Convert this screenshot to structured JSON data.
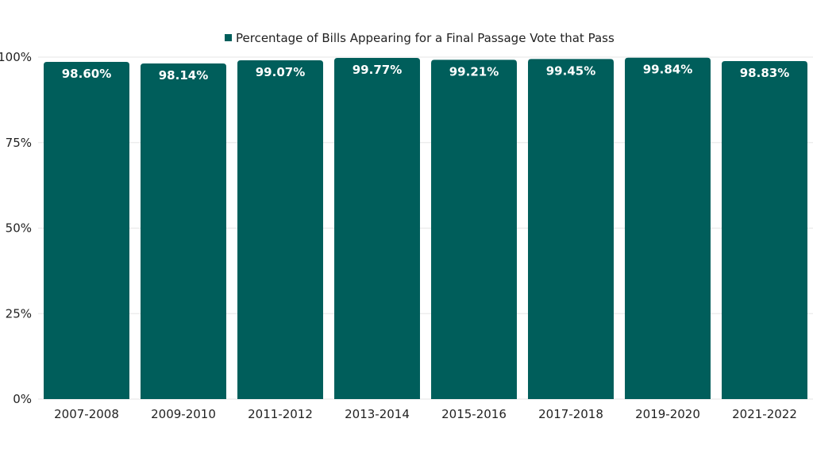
{
  "chart_data": {
    "type": "bar",
    "categories": [
      "2007-2008",
      "2009-2010",
      "2011-2012",
      "2013-2014",
      "2015-2016",
      "2017-2018",
      "2019-2020",
      "2021-2022"
    ],
    "series": [
      {
        "name": "Percentage of Bills Appearing for a Final Passage Vote that Pass",
        "values": [
          98.6,
          98.14,
          99.07,
          99.77,
          99.21,
          99.45,
          99.84,
          98.83
        ],
        "data_labels": [
          "98.60%",
          "98.14%",
          "99.07%",
          "99.77%",
          "99.21%",
          "99.45%",
          "99.84%",
          "98.83%"
        ]
      }
    ],
    "yticks": [
      0,
      25,
      50,
      75,
      100
    ],
    "ytick_labels": [
      "0%",
      "25%",
      "50%",
      "75%",
      "100%"
    ],
    "ylim": [
      0,
      100
    ],
    "title": "",
    "xlabel": "",
    "ylabel": "",
    "grid": true,
    "legend_position": "top-center",
    "bar_color": "#005e5b",
    "grid_color": "#e6e6e6"
  }
}
